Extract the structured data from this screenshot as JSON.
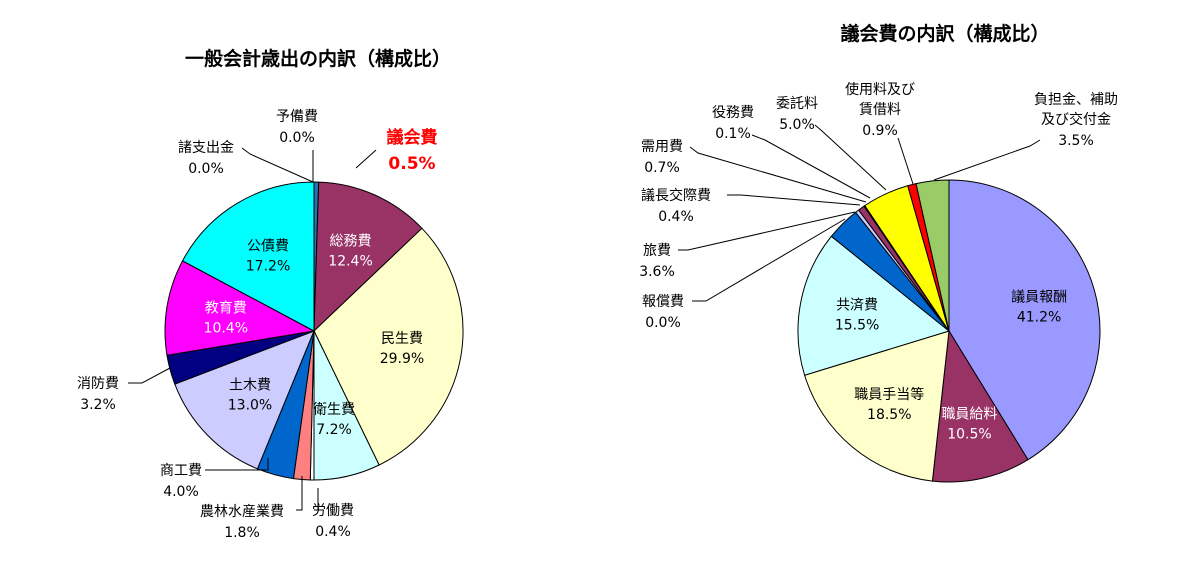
{
  "chart_data": [
    {
      "type": "pie",
      "title": "一般会計歳出の内訳（構成比）",
      "slices": [
        {
          "name": "議会費",
          "value": 0.5,
          "value_label": "0.5%",
          "color": "#1f77b4",
          "highlight": true
        },
        {
          "name": "総務費",
          "value": 12.4,
          "value_label": "12.4%",
          "color": "#993366",
          "label_inside": true,
          "label_color": "#ffffff"
        },
        {
          "name": "民生費",
          "value": 29.9,
          "value_label": "29.9%",
          "color": "#ffffcc",
          "label_inside": true,
          "label_color": "#000000"
        },
        {
          "name": "衛生費",
          "value": 7.2,
          "value_label": "7.2%",
          "color": "#ccffff",
          "label_inside": true,
          "label_color": "#000000"
        },
        {
          "name": "労働費",
          "value": 0.4,
          "value_label": "0.4%",
          "color": "#ffffff"
        },
        {
          "name": "農林水産業費",
          "value": 1.8,
          "value_label": "1.8%",
          "color": "#ff8080"
        },
        {
          "name": "商工費",
          "value": 4.0,
          "value_label": "4.0%",
          "color": "#0066cc"
        },
        {
          "name": "土木費",
          "value": 13.0,
          "value_label": "13.0%",
          "color": "#ccccff",
          "label_inside": true,
          "label_color": "#000000"
        },
        {
          "name": "消防費",
          "value": 3.2,
          "value_label": "3.2%",
          "color": "#000080"
        },
        {
          "name": "教育費",
          "value": 10.4,
          "value_label": "10.4%",
          "color": "#ff00ff",
          "label_inside": true,
          "label_color": "#ffffff"
        },
        {
          "name": "公債費",
          "value": 17.2,
          "value_label": "17.2%",
          "color": "#00ffff",
          "label_inside": true,
          "label_color": "#000000"
        },
        {
          "name": "諸支出金",
          "value": 0.0,
          "value_label": "0.0%",
          "color": "#808080"
        },
        {
          "name": "予備費",
          "value": 0.0,
          "value_label": "0.0%",
          "color": "#c0c0c0"
        }
      ]
    },
    {
      "type": "pie",
      "title": "議会費の内訳（構成比）",
      "slices": [
        {
          "name": "議員報酬",
          "value": 41.2,
          "value_label": "41.2%",
          "color": "#9999ff",
          "label_inside": true,
          "label_color": "#000000"
        },
        {
          "name": "職員給料",
          "value": 10.5,
          "value_label": "10.5%",
          "color": "#993366",
          "label_inside": true,
          "label_color": "#ffffff"
        },
        {
          "name": "職員手当等",
          "value": 18.5,
          "value_label": "18.5%",
          "color": "#ffffcc",
          "label_inside": true,
          "label_color": "#000000"
        },
        {
          "name": "共済費",
          "value": 15.5,
          "value_label": "15.5%",
          "color": "#ccffff",
          "label_inside": true,
          "label_color": "#000000"
        },
        {
          "name": "報償費",
          "value": 0.0,
          "value_label": "0.0%",
          "color": "#ffffff"
        },
        {
          "name": "旅費",
          "value": 3.6,
          "value_label": "3.6%",
          "color": "#0066cc"
        },
        {
          "name": "議長交際費",
          "value": 0.4,
          "value_label": "0.4%",
          "color": "#ccccff"
        },
        {
          "name": "需用費",
          "value": 0.7,
          "value_label": "0.7%",
          "color": "#993366"
        },
        {
          "name": "役務費",
          "value": 0.1,
          "value_label": "0.1%",
          "color": "#000080"
        },
        {
          "name": "委託料",
          "value": 5.0,
          "value_label": "5.0%",
          "color": "#ffff00"
        },
        {
          "name": "使用料及び賃借料",
          "value": 0.9,
          "value_label": "0.9%",
          "color": "#ff0000"
        },
        {
          "name": "負担金、補助及び交付金",
          "value": 3.5,
          "value_label": "3.5%",
          "color": "#99cc66"
        }
      ]
    }
  ]
}
